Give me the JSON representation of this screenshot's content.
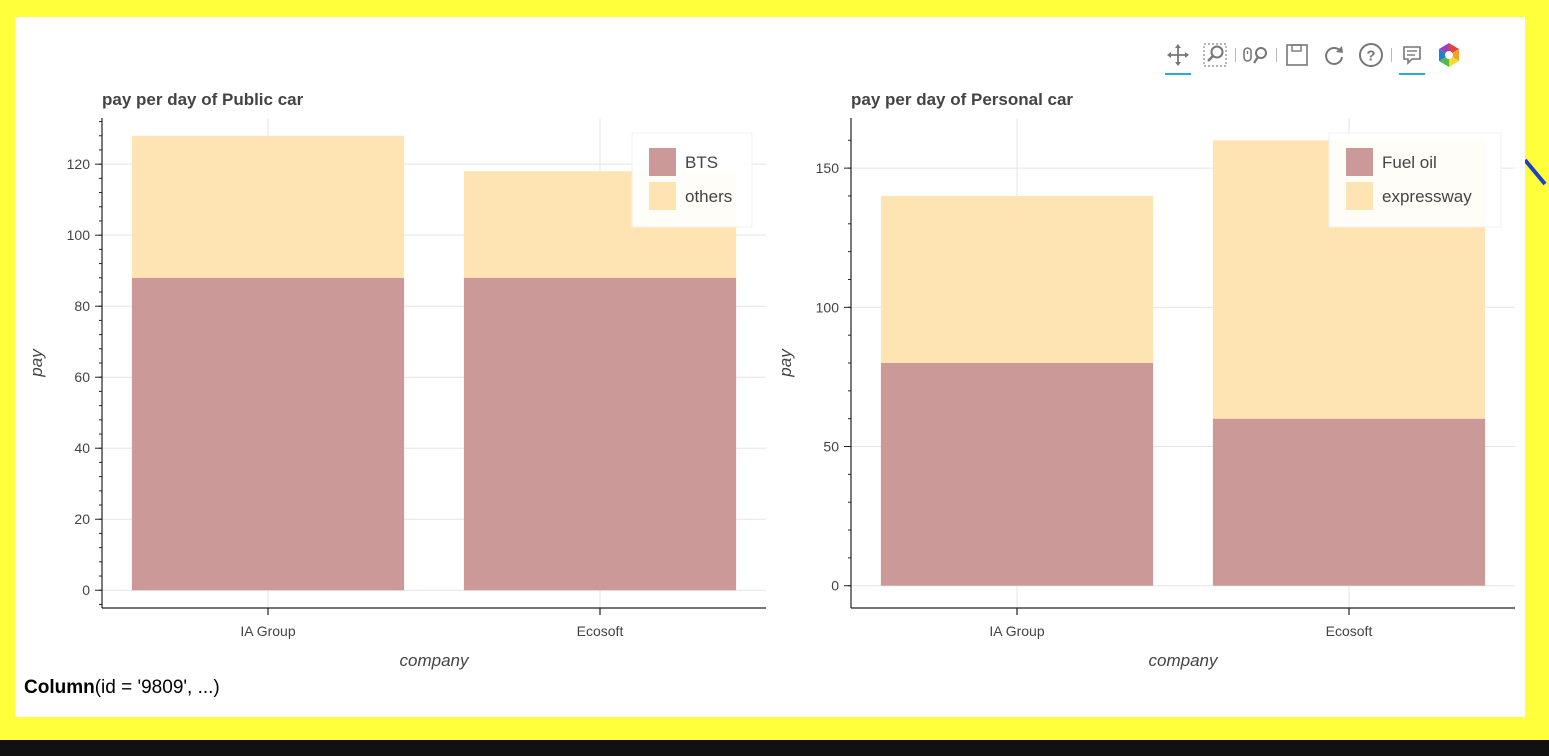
{
  "toolbar": {
    "tools": [
      {
        "name": "pan-tool-icon",
        "active": true
      },
      {
        "name": "box-zoom-tool-icon",
        "active": false
      },
      {
        "name": "wheel-zoom-tool-icon",
        "active": false
      },
      {
        "name": "save-tool-icon",
        "active": false
      },
      {
        "name": "reset-tool-icon",
        "active": false
      },
      {
        "name": "help-tool-icon",
        "active": false
      },
      {
        "name": "hover-tool-icon",
        "active": true
      },
      {
        "name": "bokeh-logo-icon",
        "active": false
      }
    ]
  },
  "footer": {
    "bold": "Column",
    "rest": "(id = '9809', ...)"
  },
  "colors": {
    "lower": "#cc9999",
    "upper": "#ffe4b3",
    "page_background": "#ffff3c",
    "accent": "#26aae1"
  },
  "chart_data": [
    {
      "type": "bar",
      "stacked": true,
      "title": "pay per day of Public car",
      "xlabel": "company",
      "ylabel": "pay",
      "categories": [
        "IA Group",
        "Ecosoft"
      ],
      "series": [
        {
          "name": "BTS",
          "values": [
            88,
            88
          ],
          "color": "#cc9999"
        },
        {
          "name": "others",
          "values": [
            40,
            30
          ],
          "color": "#ffe4b3"
        }
      ],
      "ylim": [
        -5,
        133
      ],
      "yticks": [
        0,
        20,
        40,
        60,
        80,
        100,
        120
      ],
      "ytick_labels": [
        "0",
        "20",
        "40",
        "60",
        "80",
        "100",
        "120"
      ],
      "grid": true,
      "legend": "top-right"
    },
    {
      "type": "bar",
      "stacked": true,
      "title": "pay per day of Personal car",
      "xlabel": "company",
      "ylabel": "pay",
      "categories": [
        "IA Group",
        "Ecosoft"
      ],
      "series": [
        {
          "name": "Fuel oil",
          "values": [
            80,
            60
          ],
          "color": "#cc9999"
        },
        {
          "name": "expressway",
          "values": [
            60,
            100
          ],
          "color": "#ffe4b3"
        }
      ],
      "ylim": [
        -8,
        168
      ],
      "yticks": [
        0,
        50,
        100,
        150
      ],
      "ytick_labels": [
        "0",
        "50",
        "100",
        "150"
      ],
      "grid": true,
      "legend": "top-right"
    }
  ]
}
